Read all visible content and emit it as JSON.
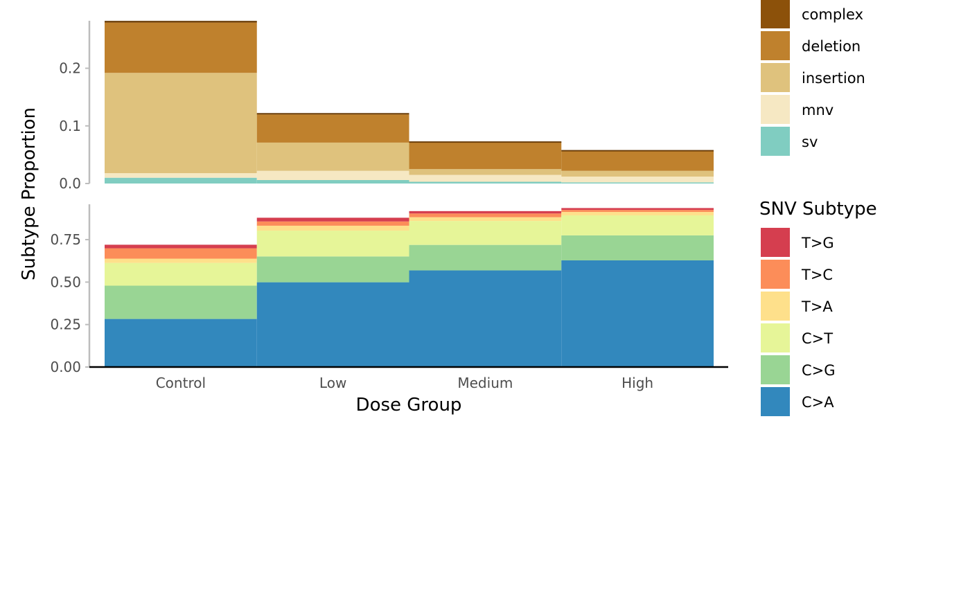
{
  "chart_data": [
    {
      "type": "bar",
      "panel": "top",
      "stacked": true,
      "categories": [
        "Control",
        "Low",
        "Medium",
        "High"
      ],
      "ylim": [
        0,
        0.28
      ],
      "yticks": [
        0.0,
        0.1,
        0.2
      ],
      "ytick_labels": [
        "0.0",
        "0.1",
        "0.2"
      ],
      "series": [
        {
          "name": "sv",
          "color": "#80CDC1",
          "values": [
            0.01,
            0.006,
            0.003,
            0.002
          ]
        },
        {
          "name": "mnv",
          "color": "#F6E8C3",
          "values": [
            0.008,
            0.016,
            0.012,
            0.01
          ]
        },
        {
          "name": "insertion",
          "color": "#DFC27D",
          "values": [
            0.174,
            0.049,
            0.01,
            0.01
          ]
        },
        {
          "name": "deletion",
          "color": "#BF812D",
          "values": [
            0.087,
            0.049,
            0.046,
            0.034
          ]
        },
        {
          "name": "complex",
          "color": "#8C510A",
          "values": [
            0.002,
            0.001,
            0.001,
            0.001
          ]
        }
      ]
    },
    {
      "type": "bar",
      "panel": "bottom",
      "stacked": true,
      "categories": [
        "Control",
        "Low",
        "Medium",
        "High"
      ],
      "ylim": [
        0,
        0.95
      ],
      "yticks": [
        0.0,
        0.25,
        0.5,
        0.75
      ],
      "ytick_labels": [
        "0.00",
        "0.25",
        "0.50",
        "0.75"
      ],
      "xlabel": "Dose Group",
      "legend_title": "SNV Subtype",
      "series": [
        {
          "name": "C>A",
          "color": "#3288BD",
          "values": [
            0.283,
            0.499,
            0.569,
            0.628
          ]
        },
        {
          "name": "C>G",
          "color": "#99D594",
          "values": [
            0.196,
            0.152,
            0.15,
            0.147
          ]
        },
        {
          "name": "C>T",
          "color": "#E6F598",
          "values": [
            0.134,
            0.152,
            0.141,
            0.118
          ]
        },
        {
          "name": "T>A",
          "color": "#FEE08B",
          "values": [
            0.025,
            0.029,
            0.022,
            0.02
          ]
        },
        {
          "name": "T>C",
          "color": "#FC8D59",
          "values": [
            0.061,
            0.025,
            0.022,
            0.012
          ]
        },
        {
          "name": "T>G",
          "color": "#D53E4F",
          "values": [
            0.021,
            0.022,
            0.014,
            0.011
          ]
        }
      ]
    }
  ],
  "ylabel": "Subtype Proportion",
  "legend_top": {
    "items": [
      "complex",
      "deletion",
      "insertion",
      "mnv",
      "sv"
    ],
    "colors": [
      "#8C510A",
      "#BF812D",
      "#DFC27D",
      "#F6E8C3",
      "#80CDC1"
    ]
  },
  "legend_bottom": {
    "title": "SNV Subtype",
    "items": [
      "T>G",
      "T>C",
      "T>A",
      "C>T",
      "C>G",
      "C>A"
    ],
    "colors": [
      "#D53E4F",
      "#FC8D59",
      "#FEE08B",
      "#E6F598",
      "#99D594",
      "#3288BD"
    ]
  }
}
